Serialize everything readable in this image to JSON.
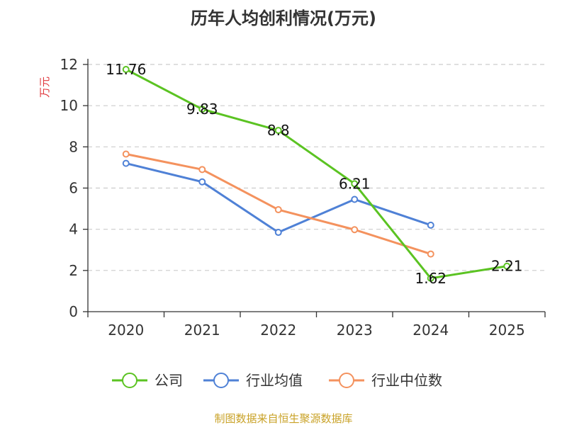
{
  "chart_data": {
    "type": "line",
    "title": "历年人均创利情况(万元)",
    "ylabel": "万元",
    "xlabel": "",
    "categories": [
      "2020",
      "2021",
      "2022",
      "2023",
      "2024",
      "2025"
    ],
    "ylim": [
      0,
      12
    ],
    "yticks": [
      0,
      2,
      4,
      6,
      8,
      10,
      12
    ],
    "grid": true,
    "legend_position": "bottom",
    "series": [
      {
        "name": "公司",
        "color": "#5bc322",
        "values": [
          11.76,
          9.83,
          8.8,
          6.21,
          1.62,
          2.21
        ],
        "labels": [
          "11.76",
          "9.83",
          "8.8",
          "6.21",
          "1.62",
          "2.21"
        ]
      },
      {
        "name": "行业均值",
        "color": "#4f81d6",
        "values": [
          7.2,
          6.3,
          3.85,
          5.45,
          4.2,
          null
        ]
      },
      {
        "name": "行业中位数",
        "color": "#f4925e",
        "values": [
          7.65,
          6.9,
          4.95,
          3.98,
          2.8,
          null
        ]
      }
    ]
  },
  "footer": {
    "source": "制图数据来自恒生聚源数据库"
  }
}
